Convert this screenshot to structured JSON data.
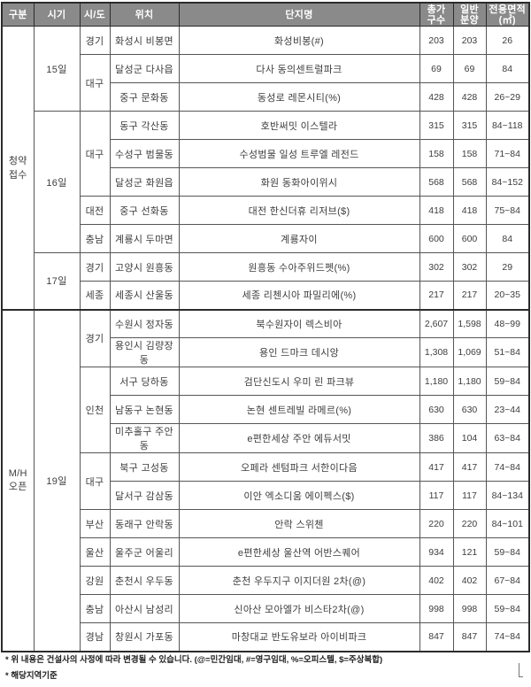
{
  "table": {
    "headers": [
      {
        "name": "col-header-category",
        "label": "구분"
      },
      {
        "name": "col-header-period",
        "label": "시기"
      },
      {
        "name": "col-header-sido",
        "label": "시/도"
      },
      {
        "name": "col-header-location",
        "label": "위치"
      },
      {
        "name": "col-header-complex-name",
        "label": "단지명"
      },
      {
        "name": "col-header-total-units",
        "label": "총가\n구수"
      },
      {
        "name": "col-header-general-sale",
        "label": "일반\n분양"
      },
      {
        "name": "col-header-area",
        "label": "전용면적\n(㎡)"
      }
    ],
    "rows": [
      {
        "group": {
          "label": "청약\n접수",
          "span": 10
        },
        "date": {
          "label": "15일",
          "span": 3
        },
        "sido": {
          "label": "경기",
          "span": 1
        },
        "loc": "화성시 비봉면",
        "name": "화성비봉(#)",
        "total": "203",
        "general": "203",
        "area": "26"
      },
      {
        "sido": {
          "label": "대구",
          "span": 2
        },
        "loc": "달성군 다사읍",
        "name": "다사 동의센트럴파크",
        "total": "69",
        "general": "69",
        "area": "84"
      },
      {
        "loc": "중구 문화동",
        "name": "동성로 레몬시티(%)",
        "total": "428",
        "general": "428",
        "area": "26~29"
      },
      {
        "date": {
          "label": "16일",
          "span": 5
        },
        "sido": {
          "label": "대구",
          "span": 3
        },
        "loc": "동구 각산동",
        "name": "호반써밋 이스텔라",
        "total": "315",
        "general": "315",
        "area": "84~118"
      },
      {
        "loc": "수성구 범물동",
        "name": "수성범물 일성 트루엘 레전드",
        "total": "158",
        "general": "158",
        "area": "71~84"
      },
      {
        "loc": "달성군 화원읍",
        "name": "화원 동화아이위시",
        "total": "568",
        "general": "568",
        "area": "84~152"
      },
      {
        "sido": {
          "label": "대전",
          "span": 1
        },
        "loc": "중구 선화동",
        "name": "대전 한신더휴 리저브($)",
        "total": "418",
        "general": "418",
        "area": "75~84"
      },
      {
        "sido": {
          "label": "충남",
          "span": 1
        },
        "loc": "계룡시 두마면",
        "name": "계룡자이",
        "total": "600",
        "general": "600",
        "area": "84"
      },
      {
        "date": {
          "label": "17일",
          "span": 2
        },
        "sido": {
          "label": "경기",
          "span": 1
        },
        "loc": "고양시 원흥동",
        "name": "원흥동 수아주위드펫(%)",
        "total": "302",
        "general": "302",
        "area": "29"
      },
      {
        "sido": {
          "label": "세종",
          "span": 1
        },
        "loc": "세종시 산울동",
        "name": "세종 리첸시아 파밀리에(%)",
        "total": "217",
        "general": "217",
        "area": "20~35"
      },
      {
        "section_start": true,
        "group": {
          "label": "M/H\n오픈",
          "span": 12
        },
        "date": {
          "label": "19일",
          "span": 12
        },
        "sido": {
          "label": "경기",
          "span": 2
        },
        "loc": "수원시 정자동",
        "name": "북수원자이 렉스비아",
        "total": "2,607",
        "general": "1,598",
        "area": "48~99"
      },
      {
        "loc": "용인시 김량장동",
        "name": "용인 드마크 데시앙",
        "total": "1,308",
        "general": "1,069",
        "area": "51~84"
      },
      {
        "sido": {
          "label": "인천",
          "span": 3
        },
        "loc": "서구 당하동",
        "name": "검단신도시 우미 린 파크뷰",
        "total": "1,180",
        "general": "1,180",
        "area": "59~84"
      },
      {
        "loc": "남동구 논현동",
        "name": "논현 센트레빌 라메르(%)",
        "total": "630",
        "general": "630",
        "area": "23~44"
      },
      {
        "loc": "미추홀구 주안동",
        "name": "e편한세상 주안 에듀서밋",
        "total": "386",
        "general": "104",
        "area": "63~84"
      },
      {
        "sido": {
          "label": "대구",
          "span": 2
        },
        "loc": "북구 고성동",
        "name": "오페라 센텀파크 서한이다음",
        "total": "417",
        "general": "417",
        "area": "74~84"
      },
      {
        "loc": "달서구 감삼동",
        "name": "이안 엑소디움 에이펙스($)",
        "total": "117",
        "general": "117",
        "area": "84~134"
      },
      {
        "sido": {
          "label": "부산",
          "span": 1
        },
        "loc": "동래구 안락동",
        "name": "안락 스위첸",
        "total": "220",
        "general": "220",
        "area": "84~101"
      },
      {
        "sido": {
          "label": "울산",
          "span": 1
        },
        "loc": "울주군 어울리",
        "name": "e편한세상 울산역 어반스퀘어",
        "total": "934",
        "general": "121",
        "area": "59~84"
      },
      {
        "sido": {
          "label": "강원",
          "span": 1
        },
        "loc": "춘천시 우두동",
        "name": "춘천 우두지구 이지더원 2차(@)",
        "total": "402",
        "general": "402",
        "area": "67~84"
      },
      {
        "sido": {
          "label": "충남",
          "span": 1
        },
        "loc": "아산시 남성리",
        "name": "신아산 모아엘가 비스타2차(@)",
        "total": "998",
        "general": "998",
        "area": "59~84"
      },
      {
        "sido": {
          "label": "경남",
          "span": 1
        },
        "loc": "창원시 가포동",
        "name": "마창대교 반도유보라 아이비파크",
        "total": "847",
        "general": "847",
        "area": "74~84"
      }
    ]
  },
  "footnotes": [
    "* 위 내용은 건설사의 사정에 따라 변경될 수 있습니다. (@=민간임대, #=영구임대, %=오피스텔, $=주상복합)",
    "* 해당지역기준"
  ],
  "colors": {
    "header_bg": "#8a8a8a",
    "header_text": "#ffffff",
    "inner_border": "#565656",
    "outer_border": "#2b2b2b",
    "body_text": "#3d3d3d"
  }
}
